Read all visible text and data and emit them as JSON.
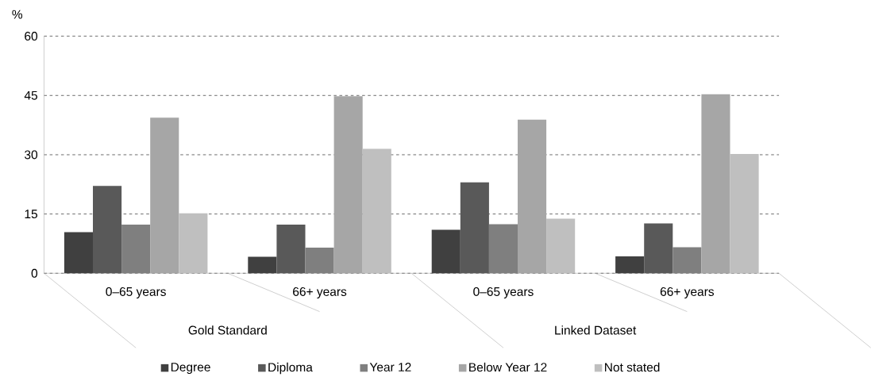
{
  "chart_data": {
    "type": "bar",
    "ylabel": "%",
    "categories": [
      "0–65 years",
      "66+ years",
      "0–65 years",
      "66+ years"
    ],
    "series": [
      {
        "name": "Degree",
        "color": "#404040",
        "values": [
          10.4,
          4.2,
          11.0,
          4.3
        ]
      },
      {
        "name": "Diploma",
        "color": "#595959",
        "values": [
          22.1,
          12.3,
          23.0,
          12.6
        ]
      },
      {
        "name": "Year 12",
        "color": "#7f7f7f",
        "values": [
          12.3,
          6.5,
          12.4,
          6.6
        ]
      },
      {
        "name": "Below Year 12",
        "color": "#a6a6a6",
        "values": [
          39.4,
          44.8,
          38.9,
          45.3
        ]
      },
      {
        "name": "Not stated",
        "color": "#bfbfbf",
        "values": [
          15.2,
          31.5,
          13.8,
          30.2
        ]
      }
    ],
    "annotations": [
      "Gold Standard",
      "Linked Dataset"
    ],
    "ylim": [
      0,
      60
    ],
    "yticks": [
      0,
      15,
      30,
      45,
      60
    ],
    "grid": "y",
    "legend": "bottom"
  }
}
